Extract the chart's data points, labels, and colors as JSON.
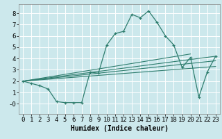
{
  "xlabel": "Humidex (Indice chaleur)",
  "background_color": "#cce8ec",
  "grid_color": "#ffffff",
  "line_color": "#2e7d6e",
  "xlim": [
    -0.5,
    23.5
  ],
  "ylim": [
    -0.9,
    8.8
  ],
  "xticks": [
    0,
    1,
    2,
    3,
    4,
    5,
    6,
    7,
    8,
    9,
    10,
    11,
    12,
    13,
    14,
    15,
    16,
    17,
    18,
    19,
    20,
    21,
    22,
    23
  ],
  "yticks": [
    0,
    1,
    2,
    3,
    4,
    5,
    6,
    7,
    8
  ],
  "ytick_labels": [
    "-0",
    "1",
    "2",
    "3",
    "4",
    "5",
    "6",
    "7",
    "8"
  ],
  "main_curve_x": [
    0,
    1,
    2,
    3,
    4,
    5,
    6,
    7,
    8,
    9,
    10,
    11,
    12,
    13,
    14,
    15,
    16,
    17,
    18,
    19,
    20,
    21,
    22,
    23
  ],
  "main_curve_y": [
    2.0,
    1.8,
    1.6,
    1.3,
    0.2,
    0.1,
    0.1,
    0.1,
    2.8,
    2.7,
    5.2,
    6.2,
    6.4,
    7.9,
    7.6,
    8.2,
    7.2,
    6.0,
    5.2,
    3.2,
    4.1,
    0.6,
    2.8,
    4.2
  ],
  "line1_x": [
    0,
    23
  ],
  "line1_y": [
    2.0,
    4.2
  ],
  "line2_x": [
    0,
    23
  ],
  "line2_y": [
    2.0,
    3.8
  ],
  "line3_x": [
    0,
    23
  ],
  "line3_y": [
    2.0,
    3.3
  ],
  "line4_x": [
    0,
    20
  ],
  "line4_y": [
    2.0,
    4.4
  ],
  "font_size": 6.5
}
